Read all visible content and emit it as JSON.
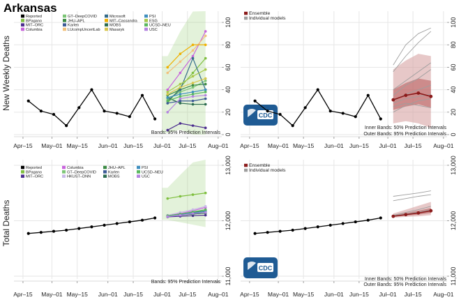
{
  "page_title": "Arkansas",
  "cdc_logo_text": "CDC",
  "x_ticks": [
    "Apr–15",
    "May–01",
    "May–15",
    "Jun–01",
    "Jun–15",
    "Jul–01",
    "Jul–15",
    "Aug–01"
  ],
  "colors": {
    "reported": "#000000",
    "ensemble": "#8b1a1a",
    "individual": "#9e9e9e",
    "grid": "#e6e6e6",
    "cdc_blue": "#1f5b94"
  },
  "chart_data": [
    {
      "type": "line",
      "id": "weekly-by-model",
      "ylabel": "New Weekly Deaths",
      "yticks": [
        "0",
        "20",
        "40",
        "60",
        "80",
        "100"
      ],
      "ylim": [
        0,
        110
      ],
      "xlim": [
        "2020-04-10",
        "2020-08-03"
      ],
      "grid": true,
      "legend": {
        "placement": "top-left",
        "entries": [
          {
            "label": "Reported",
            "color": "#000000"
          },
          {
            "label": "BPagano",
            "color": "#7fbf3f"
          },
          {
            "label": "MIT–ORC",
            "color": "#4b2c8f"
          },
          {
            "label": "Columbia",
            "color": "#c864dc"
          },
          {
            "label": "GT–DeepCOVID",
            "color": "#7cc576"
          },
          {
            "label": "JHU–APL",
            "color": "#3a8a43"
          },
          {
            "label": "Karlen",
            "color": "#3c5a96"
          },
          {
            "label": "LUcompUncertLab",
            "color": "#f2c17d"
          },
          {
            "label": "Microsoft",
            "color": "#336b8a"
          },
          {
            "label": "MIT–Cassandra",
            "color": "#f0b000"
          },
          {
            "label": "MOBS",
            "color": "#2b6b4f"
          },
          {
            "label": "Masaryk",
            "color": "#d8c64f"
          },
          {
            "label": "PSI",
            "color": "#3f8fbf"
          },
          {
            "label": "ESG",
            "color": "#a8c84a"
          },
          {
            "label": "UCSD–NEU",
            "color": "#59b85e"
          },
          {
            "label": "USC",
            "color": "#b484e0"
          }
        ]
      },
      "band_note": "Bands: 95% Prediction Intervals",
      "reported": {
        "x": [
          "2020-04-18",
          "2020-04-25",
          "2020-05-02",
          "2020-05-09",
          "2020-05-16",
          "2020-05-23",
          "2020-05-30",
          "2020-06-06",
          "2020-06-13",
          "2020-06-20",
          "2020-06-27"
        ],
        "y": [
          30,
          21,
          18,
          8,
          24,
          40,
          21,
          19,
          16,
          35,
          14
        ]
      },
      "forecast_x": [
        "2020-07-04",
        "2020-07-11",
        "2020-07-18",
        "2020-07-25"
      ],
      "models": [
        {
          "name": "BPagano",
          "values": [
            28,
            42,
            55,
            68
          ]
        },
        {
          "name": "MIT–ORC",
          "values": [
            4,
            10,
            8,
            6
          ]
        },
        {
          "name": "Columbia",
          "values": [
            40,
            55,
            70,
            92
          ]
        },
        {
          "name": "GT–DeepCOVID",
          "values": [
            32,
            38,
            42,
            48
          ]
        },
        {
          "name": "JHU–APL",
          "values": [
            35,
            40,
            44,
            45
          ]
        },
        {
          "name": "Karlen",
          "values": [
            28,
            30,
            30,
            32
          ]
        },
        {
          "name": "LUcompUncertLab",
          "values": [
            55,
            65,
            75,
            88
          ]
        },
        {
          "name": "Microsoft",
          "values": [
            30,
            40,
            68,
            40
          ]
        },
        {
          "name": "MIT–Cassandra",
          "values": [
            60,
            72,
            80,
            80
          ]
        },
        {
          "name": "MOBS",
          "values": [
            33,
            28,
            27,
            27
          ]
        },
        {
          "name": "Masaryk",
          "values": [
            36,
            42,
            46,
            50
          ]
        },
        {
          "name": "PSI",
          "values": [
            33,
            36,
            38,
            40
          ]
        },
        {
          "name": "ESG",
          "values": [
            38,
            45,
            52,
            58
          ]
        },
        {
          "name": "UCSD–NEU",
          "values": [
            30,
            34,
            36,
            38
          ]
        },
        {
          "name": "USC",
          "values": [
            20,
            32,
            34,
            35
          ]
        }
      ]
    },
    {
      "type": "line",
      "id": "weekly-ensemble",
      "ylabel": "",
      "yticks": [
        "0",
        "20",
        "40",
        "60",
        "80",
        "100"
      ],
      "ylim": [
        0,
        110
      ],
      "xlim": [
        "2020-04-10",
        "2020-08-03"
      ],
      "grid": true,
      "legend": {
        "placement": "top-left",
        "entries": [
          {
            "label": "Ensemble",
            "color": "#8b1a1a"
          },
          {
            "label": "Individual models",
            "color": "#9e9e9e"
          }
        ]
      },
      "band_note_inner": "Inner Bands: 50% Prediction Intervals",
      "band_note_outer": "Outer Bands: 95% Prediction Intervals",
      "reported": {
        "x": [
          "2020-04-18",
          "2020-04-25",
          "2020-05-02",
          "2020-05-09",
          "2020-05-16",
          "2020-05-23",
          "2020-05-30",
          "2020-06-06",
          "2020-06-13",
          "2020-06-20",
          "2020-06-27"
        ],
        "y": [
          30,
          21,
          18,
          8,
          24,
          40,
          21,
          19,
          16,
          35,
          14
        ]
      },
      "forecast_x": [
        "2020-07-04",
        "2020-07-11",
        "2020-07-18",
        "2020-07-25"
      ],
      "ensemble": {
        "values": [
          31,
          35,
          37,
          34
        ],
        "inner_lo": [
          22,
          25,
          27,
          24
        ],
        "inner_hi": [
          40,
          46,
          50,
          48
        ],
        "outer_lo": [
          10,
          12,
          10,
          6
        ],
        "outer_hi": [
          58,
          66,
          72,
          70
        ]
      },
      "individual_values": [
        [
          62,
          80,
          90,
          95
        ],
        [
          56,
          70,
          82,
          92
        ],
        [
          40,
          48,
          56,
          64
        ],
        [
          30,
          36,
          40,
          44
        ],
        [
          28,
          32,
          34,
          36
        ],
        [
          25,
          28,
          26,
          24
        ],
        [
          35,
          44,
          50,
          58
        ],
        [
          20,
          26,
          30,
          32
        ]
      ]
    },
    {
      "type": "line",
      "id": "total-by-model",
      "ylabel": "Total Deaths",
      "yticks": [
        "11,000",
        "12,000",
        "13,000"
      ],
      "ylim": [
        10950,
        13100
      ],
      "xlim": [
        "2020-04-10",
        "2020-08-03"
      ],
      "grid": true,
      "legend": {
        "placement": "top-left",
        "entries": [
          {
            "label": "Reported",
            "color": "#000000"
          },
          {
            "label": "BPagano",
            "color": "#7fbf3f"
          },
          {
            "label": "MIT–ORC",
            "color": "#4b2c8f"
          },
          {
            "label": "Columbia",
            "color": "#c864dc"
          },
          {
            "label": "GT–DeepCOVID",
            "color": "#7cc576"
          },
          {
            "label": "HKUST–DNN",
            "color": "#c8b8e8"
          },
          {
            "label": "JHU–APL",
            "color": "#3a8a43"
          },
          {
            "label": "Karlen",
            "color": "#3c5a96"
          },
          {
            "label": "MOBS",
            "color": "#2b6b4f"
          },
          {
            "label": "PSI",
            "color": "#3f8fbf"
          },
          {
            "label": "UCSD–NEU",
            "color": "#59b85e"
          },
          {
            "label": "USC",
            "color": "#b484e0"
          }
        ]
      },
      "band_note": "Bands: 95% Prediction Intervals",
      "reported": {
        "x": [
          "2020-04-18",
          "2020-04-25",
          "2020-05-02",
          "2020-05-09",
          "2020-05-16",
          "2020-05-23",
          "2020-05-30",
          "2020-06-06",
          "2020-06-13",
          "2020-06-20",
          "2020-06-27"
        ],
        "y": [
          11770,
          11790,
          11810,
          11830,
          11860,
          11890,
          11920,
          11950,
          11980,
          12010,
          12050
        ]
      },
      "forecast_x": [
        "2020-07-04",
        "2020-07-11",
        "2020-07-18",
        "2020-07-25"
      ],
      "models": [
        {
          "name": "BPagano",
          "values": [
            12400,
            12440,
            12470,
            12500
          ]
        },
        {
          "name": "MIT–ORC",
          "values": [
            12070,
            12080,
            12090,
            12100
          ]
        },
        {
          "name": "Columbia",
          "values": [
            12090,
            12130,
            12180,
            12240
          ]
        },
        {
          "name": "GT–DeepCOVID",
          "values": [
            12080,
            12110,
            12140,
            12170
          ]
        },
        {
          "name": "HKUST–DNN",
          "values": [
            12100,
            12150,
            12200,
            12260
          ]
        },
        {
          "name": "JHU–APL",
          "values": [
            12090,
            12120,
            12150,
            12180
          ]
        },
        {
          "name": "Karlen",
          "values": [
            12080,
            12100,
            12120,
            12140
          ]
        },
        {
          "name": "MOBS",
          "values": [
            12080,
            12100,
            12120,
            12140
          ]
        },
        {
          "name": "PSI",
          "values": [
            12080,
            12110,
            12140,
            12170
          ]
        },
        {
          "name": "UCSD–NEU",
          "values": [
            12090,
            12120,
            12160,
            12200
          ]
        },
        {
          "name": "USC",
          "values": [
            12075,
            12100,
            12130,
            12150
          ]
        }
      ]
    },
    {
      "type": "line",
      "id": "total-ensemble",
      "ylabel": "",
      "yticks": [
        "11,000",
        "12,000",
        "13,000"
      ],
      "ylim": [
        10950,
        13100
      ],
      "xlim": [
        "2020-04-10",
        "2020-08-03"
      ],
      "grid": true,
      "legend": {
        "placement": "top-left",
        "entries": [
          {
            "label": "Ensemble",
            "color": "#8b1a1a"
          },
          {
            "label": "Individual models",
            "color": "#9e9e9e"
          }
        ]
      },
      "band_note_inner": "Inner Bands: 50% Prediction Intervals",
      "band_note_outer": "Outer Bands: 95% Prediction Intervals",
      "reported": {
        "x": [
          "2020-04-18",
          "2020-04-25",
          "2020-05-02",
          "2020-05-09",
          "2020-05-16",
          "2020-05-23",
          "2020-05-30",
          "2020-06-06",
          "2020-06-13",
          "2020-06-20",
          "2020-06-27"
        ],
        "y": [
          11770,
          11790,
          11810,
          11830,
          11860,
          11890,
          11920,
          11950,
          11980,
          12010,
          12050
        ]
      },
      "forecast_x": [
        "2020-07-04",
        "2020-07-11",
        "2020-07-18",
        "2020-07-25"
      ],
      "ensemble": {
        "values": [
          12080,
          12110,
          12140,
          12180
        ],
        "inner_lo": [
          12070,
          12090,
          12110,
          12140
        ],
        "inner_hi": [
          12100,
          12140,
          12180,
          12230
        ],
        "outer_lo": [
          12055,
          12070,
          12080,
          12100
        ],
        "outer_hi": [
          12130,
          12200,
          12270,
          12340
        ]
      },
      "individual_values": [
        [
          12440,
          12470,
          12500,
          12540
        ],
        [
          12360,
          12400,
          12440,
          12470
        ],
        [
          12100,
          12150,
          12200,
          12260
        ],
        [
          12090,
          12120,
          12160,
          12200
        ],
        [
          12080,
          12110,
          12140,
          12170
        ]
      ]
    }
  ]
}
